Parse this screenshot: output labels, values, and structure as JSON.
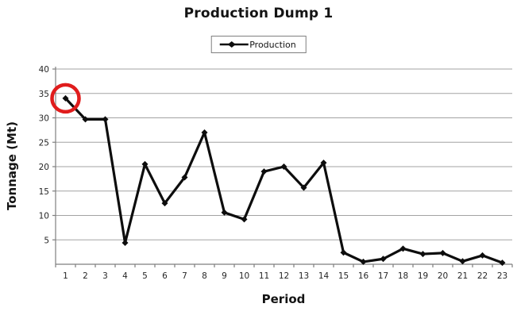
{
  "chart_data": {
    "type": "line",
    "title": "Production Dump 1",
    "legend": "Production",
    "legend_position": "top-center",
    "xlabel": "Period",
    "ylabel": "Tonnage (Mt)",
    "categories": [
      "1",
      "2",
      "3",
      "4",
      "5",
      "6",
      "7",
      "8",
      "9",
      "10",
      "11",
      "12",
      "13",
      "14",
      "15",
      "16",
      "17",
      "18",
      "19",
      "20",
      "21",
      "22",
      "23"
    ],
    "series": [
      {
        "name": "Production",
        "values": [
          34,
          29.7,
          29.7,
          4.4,
          20.5,
          12.5,
          17.8,
          27,
          10.6,
          9.2,
          19,
          20,
          15.7,
          20.8,
          2.4,
          0.5,
          1.1,
          3.2,
          2.1,
          2.3,
          0.6,
          1.8,
          0.3
        ]
      }
    ],
    "yticks": [
      5,
      10,
      15,
      20,
      25,
      30,
      35,
      40
    ],
    "ylim": [
      0,
      40
    ],
    "grid": true,
    "marker": "diamond",
    "annotation": {
      "type": "circle",
      "period": 1,
      "description": "red circle highlighting first data point",
      "color": "#e01c1c"
    },
    "colors": {
      "line": "#0d0d0d",
      "grid": "#a3a3a3",
      "axis": "#7f7f7f",
      "text": "#262626",
      "annotation": "#e01c1c"
    }
  }
}
